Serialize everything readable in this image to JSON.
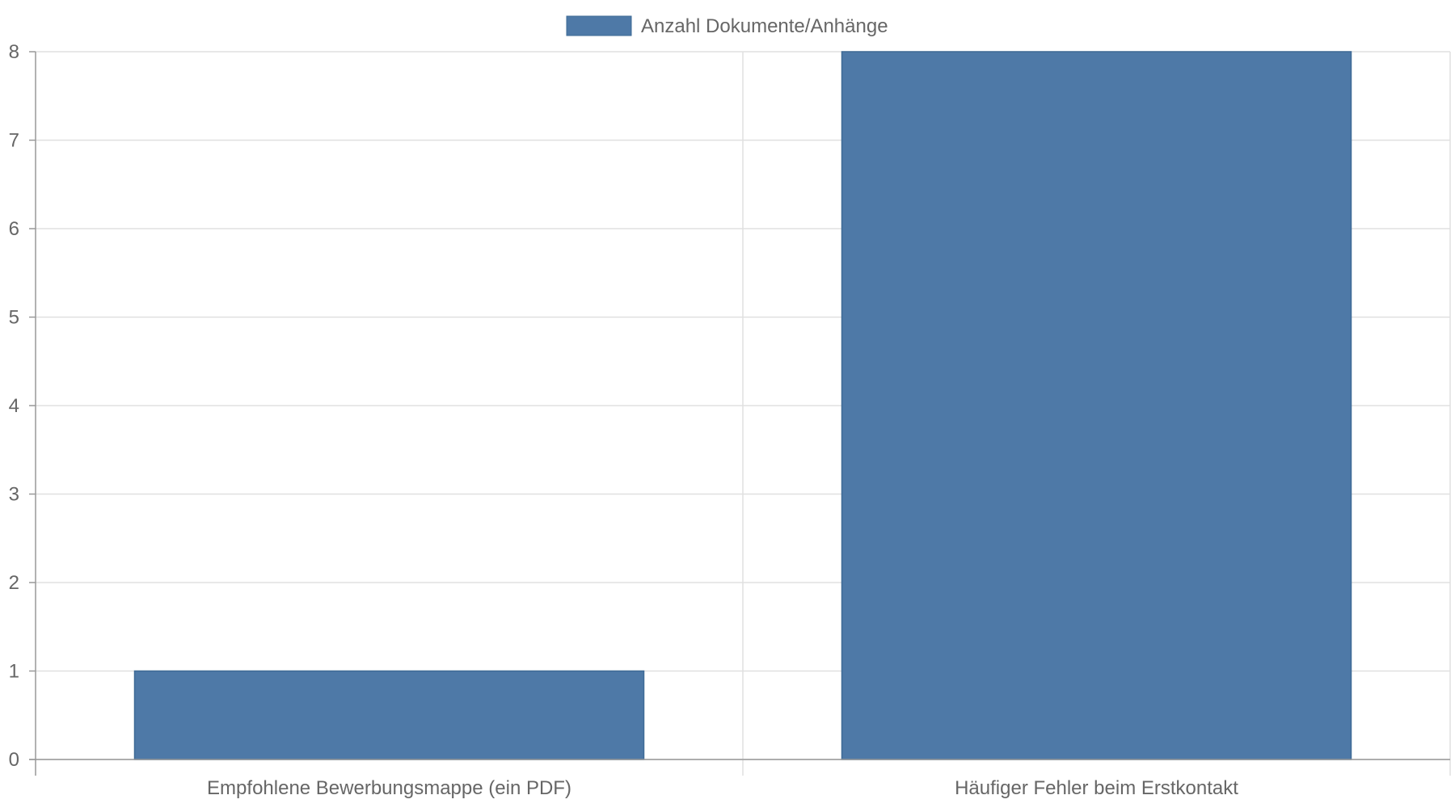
{
  "chart_data": {
    "type": "bar",
    "categories": [
      "Empfohlene Bewerbungsmappe (ein PDF)",
      "Häufiger Fehler beim Erstkontakt"
    ],
    "series": [
      {
        "name": "Anzahl Dokumente/Anhänge",
        "values": [
          1,
          8
        ],
        "color": "#4e79a7"
      }
    ],
    "ylim": [
      0,
      8
    ],
    "yticks": [
      0,
      1,
      2,
      3,
      4,
      5,
      6,
      7,
      8
    ],
    "grid": true,
    "legend_position": "top-center",
    "colors": {
      "bar": "#4e79a7",
      "grid": "#e0e0e0",
      "axis": "#999999",
      "text": "#666666"
    }
  }
}
